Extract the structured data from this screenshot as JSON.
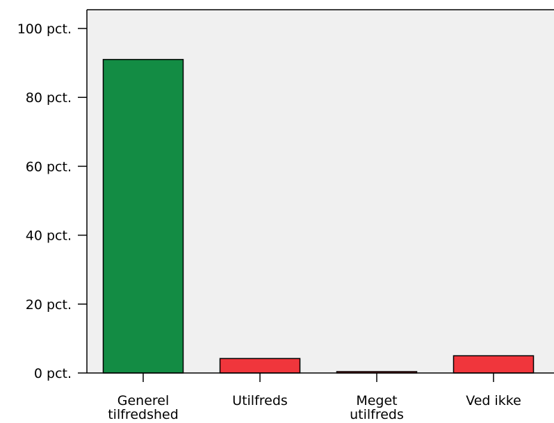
{
  "chart_data": {
    "type": "bar",
    "categories": [
      [
        "Generel",
        "tilfredshed"
      ],
      [
        "Utilfreds"
      ],
      [
        "Meget",
        "utilfreds"
      ],
      [
        "Ved ikke"
      ]
    ],
    "values": [
      91,
      4.2,
      0.4,
      5
    ],
    "colors": [
      "#138c44",
      "#f0363c",
      "#f0363c",
      "#f0363c"
    ],
    "ylim": [
      0,
      100
    ],
    "yticks": [
      {
        "value": 0,
        "label": "0 pct."
      },
      {
        "value": 20,
        "label": "20 pct."
      },
      {
        "value": 40,
        "label": "40 pct."
      },
      {
        "value": 60,
        "label": "60 pct."
      },
      {
        "value": 80,
        "label": "80 pct."
      },
      {
        "value": 100,
        "label": "100 pct."
      }
    ],
    "plot_background": "#f0f0f0",
    "bar_outline": "#000000",
    "grid": false
  }
}
